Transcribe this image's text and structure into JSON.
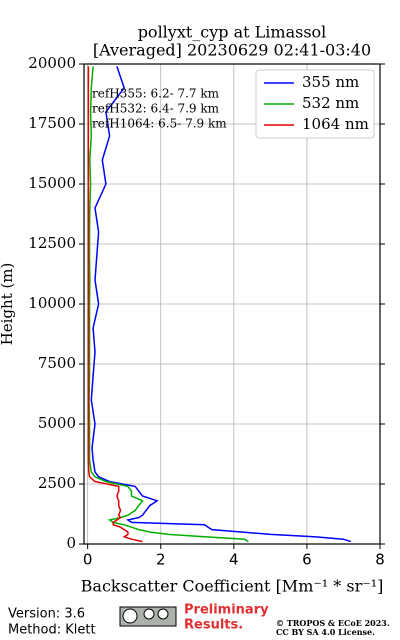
{
  "chart_data": {
    "type": "line",
    "title": "pollyxt_cyp at Limassol",
    "subtitle": "[Averaged] 20230629 02:41-03:40",
    "x_label": "Backscatter Coefficient [Mm⁻¹ * sr⁻¹]",
    "y_label": "Height (m)",
    "heights": [
      100,
      200,
      300,
      400,
      500,
      600,
      700,
      800,
      900,
      1000,
      1100,
      1200,
      1400,
      1600,
      1800,
      2000,
      2200,
      2400,
      2600,
      2800,
      3000,
      3500,
      4000,
      5000,
      6000,
      7000,
      8000,
      9000,
      10000,
      11000,
      12000,
      13000,
      14000,
      15000,
      16000,
      17000,
      18000,
      19000,
      19900
    ],
    "series": [
      {
        "name": "355 nm",
        "color": "#0000ff",
        "values": [
          7.2,
          7.0,
          6.2,
          5.0,
          4.2,
          3.4,
          3.3,
          3.2,
          1.2,
          1.1,
          1.4,
          1.5,
          1.6,
          1.7,
          1.9,
          1.5,
          1.4,
          1.3,
          0.6,
          0.3,
          0.2,
          0.15,
          0.12,
          0.2,
          0.1,
          0.15,
          0.2,
          0.15,
          0.3,
          0.2,
          0.25,
          0.3,
          0.2,
          0.5,
          0.4,
          0.6,
          0.5,
          1.0,
          0.8
        ]
      },
      {
        "name": "532 nm",
        "color": "#00b000",
        "values": [
          4.4,
          4.3,
          3.2,
          2.2,
          1.7,
          1.4,
          1.2,
          1.0,
          0.7,
          0.6,
          0.9,
          1.1,
          1.3,
          1.4,
          1.5,
          1.2,
          1.2,
          1.1,
          0.5,
          0.2,
          0.1,
          0.05,
          0.05,
          0.05,
          0.04,
          0.05,
          0.05,
          0.05,
          0.05,
          0.06,
          0.05,
          0.05,
          0.06,
          0.08,
          0.06,
          0.1,
          0.08,
          0.1,
          0.15
        ]
      },
      {
        "name": "1064 nm",
        "color": "#e00000",
        "values": [
          1.5,
          1.2,
          1.0,
          1.1,
          1.1,
          1.0,
          0.9,
          0.7,
          0.7,
          0.8,
          0.9,
          0.85,
          0.9,
          0.85,
          0.85,
          0.8,
          0.85,
          0.85,
          0.2,
          0.05,
          0.03,
          0.02,
          0.02,
          0.02,
          0.02,
          0.02,
          0.02,
          0.02,
          0.02,
          0.02,
          0.02,
          0.02,
          0.02,
          0.02,
          0.02,
          0.02,
          0.02,
          0.02,
          0.02
        ]
      }
    ],
    "xlim": [
      -0.1,
      8
    ],
    "xticks": [
      0,
      2,
      4,
      6,
      8
    ],
    "ylim": [
      0,
      20000
    ],
    "yticks": [
      0,
      2500,
      5000,
      7500,
      10000,
      12500,
      15000,
      17500,
      20000
    ],
    "grid": true,
    "legend": "upper right",
    "annotations": [
      "refH355:  6.2- 7.7 km",
      "refH532:  6.4- 7.9 km",
      "refH1064:  6.5- 7.9 km"
    ]
  },
  "footer": {
    "version": "Version: 3.6",
    "method": "Method: Klett",
    "preliminary": [
      "Preliminary",
      "Results."
    ],
    "copyright": [
      "© TROPOS & ECoE 2023.",
      "CC BY SA 4.0 License."
    ]
  }
}
